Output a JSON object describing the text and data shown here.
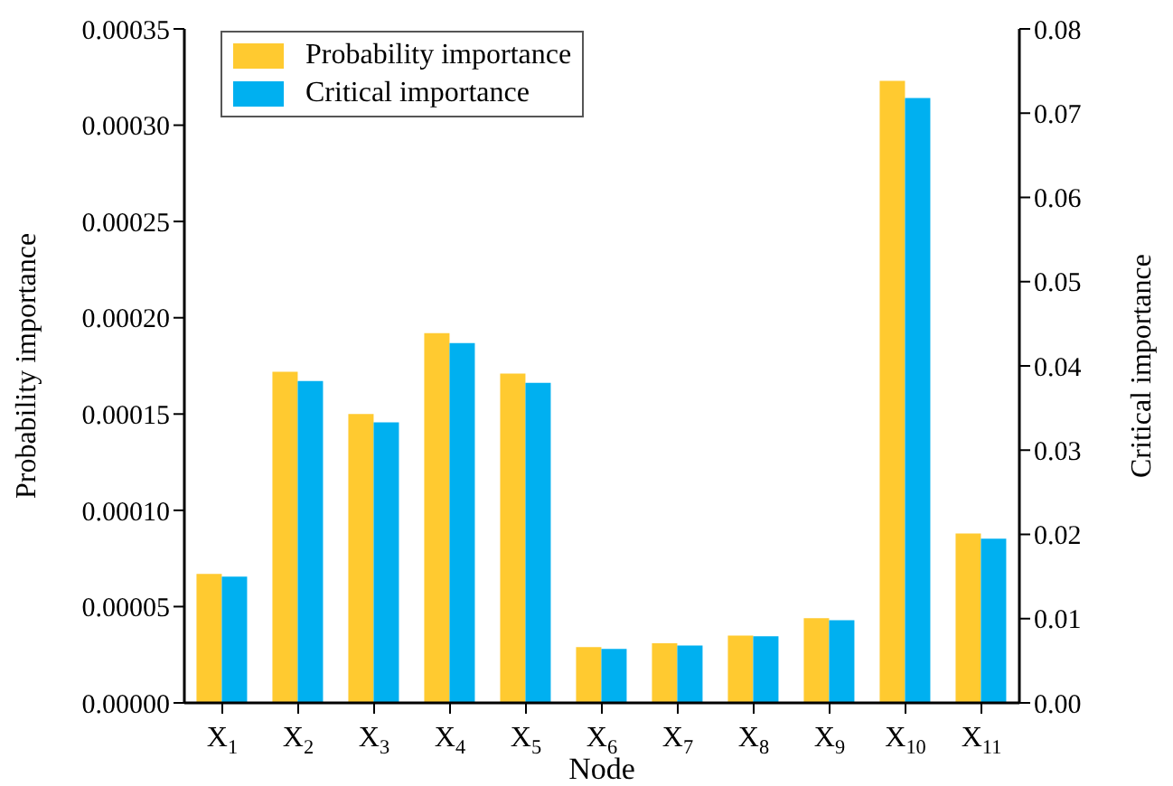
{
  "chart_data": {
    "type": "bar",
    "xlabel": "Node",
    "ylabel": "Probability importance",
    "y2label": "Critical importance",
    "categories": [
      "X$_{1}$",
      "X$_{2}$",
      "X$_{3}$",
      "X$_{4}$",
      "X$_{5}$",
      "X$_{6}$",
      "X$_{7}$",
      "X$_{8}$",
      "X$_{9}$",
      "X$_{10}$",
      "X$_{11}$"
    ],
    "series": [
      {
        "name": "Probability importance",
        "color": "#ffca30",
        "values": [
          6.7e-05,
          0.000172,
          0.00015,
          0.000192,
          0.000171,
          2.9e-05,
          3.1e-05,
          3.5e-05,
          4.4e-05,
          0.000323,
          8.8e-05
        ]
      },
      {
        "name": "Critical importance",
        "color": "#00b0f0",
        "axis": "y2",
        "values": [
          0.015,
          0.0382,
          0.0333,
          0.0427,
          0.038,
          0.0064,
          0.0068,
          0.0079,
          0.0098,
          0.0718,
          0.0195
        ]
      }
    ],
    "ylim": [
      0,
      0.00035
    ],
    "yticks": [
      {
        "value": 0,
        "label": "0.00000"
      },
      {
        "value": 5e-05,
        "label": "0.00005"
      },
      {
        "value": 0.0001,
        "label": "0.00010"
      },
      {
        "value": 0.00015,
        "label": "0.00015"
      },
      {
        "value": 0.0002,
        "label": "0.00020"
      },
      {
        "value": 0.00025,
        "label": "0.00025"
      },
      {
        "value": 0.0003,
        "label": "0.00030"
      },
      {
        "value": 0.00035,
        "label": "0.00035"
      }
    ],
    "y2lim": [
      0,
      0.08
    ],
    "y2ticks": [
      {
        "value": 0,
        "label": "0.00"
      },
      {
        "value": 0.01,
        "label": "0.01"
      },
      {
        "value": 0.02,
        "label": "0.02"
      },
      {
        "value": 0.03,
        "label": "0.03"
      },
      {
        "value": 0.04,
        "label": "0.04"
      },
      {
        "value": 0.05,
        "label": "0.05"
      },
      {
        "value": 0.06,
        "label": "0.06"
      },
      {
        "value": 0.07,
        "label": "0.07"
      },
      {
        "value": 0.08,
        "label": "0.08"
      }
    ],
    "legend": "top left",
    "grid": false
  }
}
